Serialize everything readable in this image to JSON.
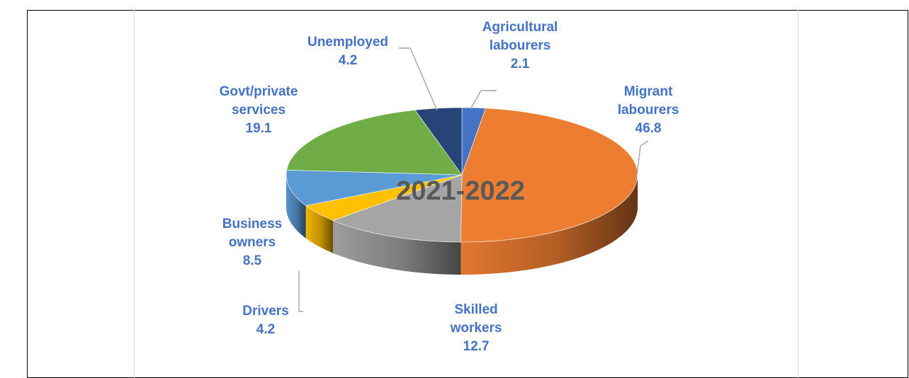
{
  "chart_data": {
    "type": "pie",
    "title": "2021-2022",
    "categories": [
      "Agricultural labourers",
      "Migrant labourers",
      "Skilled workers",
      "Drivers",
      "Business owners",
      "Govt/private services",
      "Unemployed"
    ],
    "values": [
      2.1,
      46.8,
      12.7,
      4.2,
      8.5,
      19.1,
      4.2
    ],
    "slices": [
      {
        "label_lines": [
          "Agricultural",
          "labourers"
        ],
        "value": "2.1",
        "color": "#4472c4"
      },
      {
        "label_lines": [
          "Migrant",
          "labourers"
        ],
        "value": "46.8",
        "color": "#ed7d31"
      },
      {
        "label_lines": [
          "Skilled",
          "workers"
        ],
        "value": "12.7",
        "color": "#a5a5a5"
      },
      {
        "label_lines": [
          "Drivers"
        ],
        "value": "4.2",
        "color": "#ffc000"
      },
      {
        "label_lines": [
          "Business",
          "owners"
        ],
        "value": "8.5",
        "color": "#5b9bd5"
      },
      {
        "label_lines": [
          "Govt/private",
          "services"
        ],
        "value": "19.1",
        "color": "#70ad47"
      },
      {
        "label_lines": [
          "Unemployed"
        ],
        "value": "4.2",
        "color": "#264478"
      }
    ],
    "label_color": "#4472c4",
    "title_color": "#595959",
    "style": "3d-pie",
    "legend": "none",
    "data_labels": "outside-with-leader-lines"
  }
}
